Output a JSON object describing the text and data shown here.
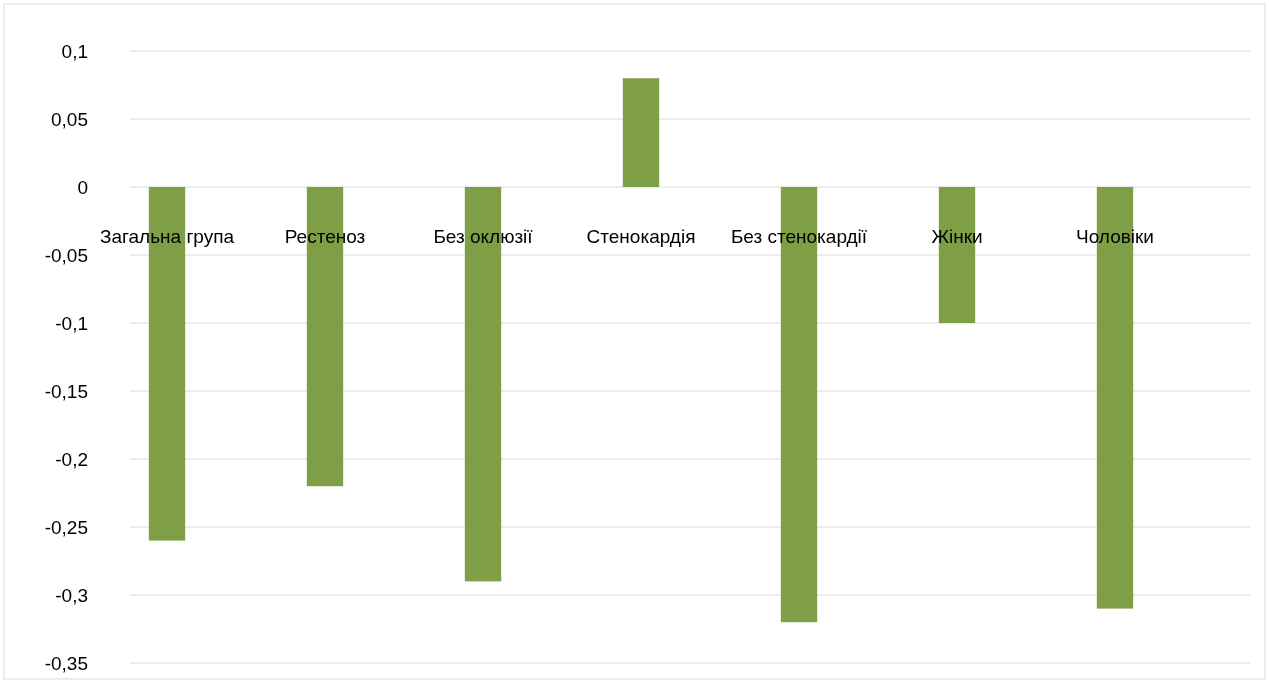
{
  "chart_data": {
    "type": "bar",
    "categories": [
      "Загальна група",
      "Рестеноз",
      "Без оклюзії",
      "Стенокардія",
      "Без стенокардії",
      "Жінки",
      "Чоловіки"
    ],
    "values": [
      -0.26,
      -0.22,
      -0.29,
      0.08,
      -0.32,
      -0.1,
      -0.31
    ],
    "color": "#7f9f47",
    "ylim": [
      -0.35,
      0.1
    ],
    "yticks": [
      {
        "value": 0.1,
        "label": "0,1"
      },
      {
        "value": 0.05,
        "label": "0,05"
      },
      0,
      {
        "value": -0.05,
        "label": "-0,05"
      },
      {
        "value": -0.1,
        "label": "-0,1"
      },
      {
        "value": -0.15,
        "label": "-0,15"
      },
      {
        "value": -0.2,
        "label": "-0,2"
      },
      {
        "value": -0.25,
        "label": "-0,25"
      },
      {
        "value": -0.3,
        "label": "-0,3"
      },
      {
        "value": -0.35,
        "label": "-0,35"
      }
    ],
    "grid": "y"
  }
}
